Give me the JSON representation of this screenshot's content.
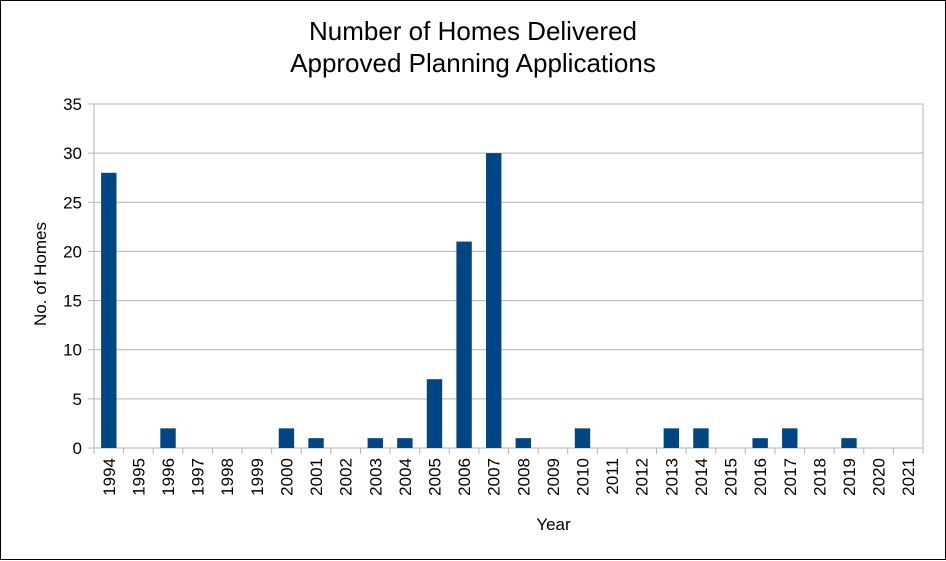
{
  "chart_data": {
    "type": "bar",
    "title": [
      "Number of Homes Delivered",
      "Approved Planning Applications"
    ],
    "xlabel": "Year",
    "ylabel": "No. of Homes",
    "ylim": [
      0,
      35
    ],
    "yticks": [
      0,
      5,
      10,
      15,
      20,
      25,
      30,
      35
    ],
    "grid": true,
    "legend": "none",
    "bar_color": "#004586",
    "categories": [
      "1994",
      "1995",
      "1996",
      "1997",
      "1998",
      "1999",
      "2000",
      "2001",
      "2002",
      "2003",
      "2004",
      "2005",
      "2006",
      "2007",
      "2008",
      "2009",
      "2010",
      "2011",
      "2012",
      "2013",
      "2014",
      "2015",
      "2016",
      "2017",
      "2018",
      "2019",
      "2020",
      "2021"
    ],
    "values": [
      28,
      0,
      2,
      0,
      0,
      0,
      2,
      1,
      0,
      1,
      1,
      7,
      21,
      30,
      1,
      0,
      2,
      0,
      0,
      2,
      2,
      0,
      1,
      2,
      0,
      1,
      0,
      0
    ]
  }
}
